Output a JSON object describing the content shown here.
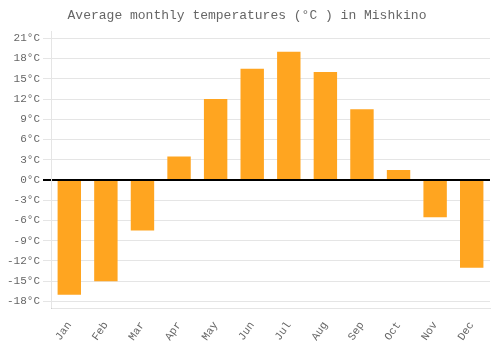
{
  "chart_data": {
    "type": "bar",
    "title": "Average monthly temperatures (°C ) in Mishkino",
    "categories": [
      "Jan",
      "Feb",
      "Mar",
      "Apr",
      "May",
      "Jun",
      "Jul",
      "Aug",
      "Sep",
      "Oct",
      "Nov",
      "Dec"
    ],
    "values": [
      -17,
      -15,
      -7.5,
      3.5,
      12,
      16.5,
      19,
      16,
      10.5,
      1.5,
      -5.5,
      -13
    ],
    "color": "#FFA520",
    "ylim": [
      -19,
      22
    ],
    "yticks": [
      {
        "value": -18,
        "label": "-18°C"
      },
      {
        "value": -15,
        "label": "-15°C"
      },
      {
        "value": -12,
        "label": "-12°C"
      },
      {
        "value": -9,
        "label": "-9°C"
      },
      {
        "value": -6,
        "label": "-6°C"
      },
      {
        "value": -3,
        "label": "-3°C"
      },
      {
        "value": 0,
        "label": "0°C"
      },
      {
        "value": 3,
        "label": "3°C"
      },
      {
        "value": 6,
        "label": "6°C"
      },
      {
        "value": 9,
        "label": "9°C"
      },
      {
        "value": 12,
        "label": "12°C"
      },
      {
        "value": 15,
        "label": "15°C"
      },
      {
        "value": 18,
        "label": "18°C"
      },
      {
        "value": 21,
        "label": "21°C"
      }
    ],
    "grid": true
  }
}
